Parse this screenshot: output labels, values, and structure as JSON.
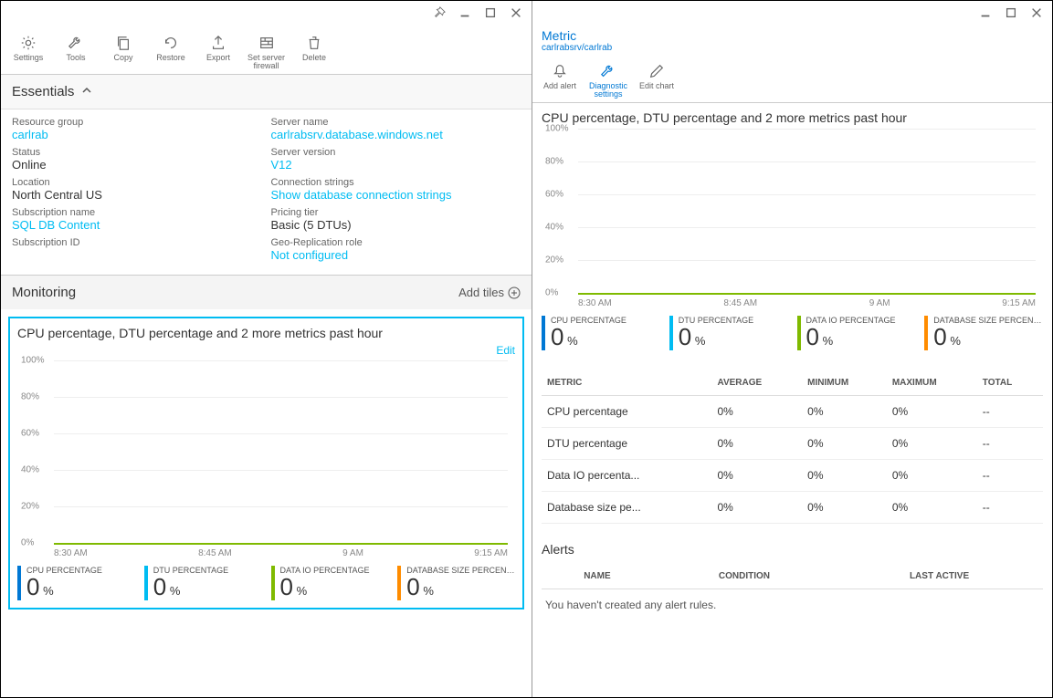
{
  "leftPanel": {
    "toolbar": [
      {
        "label": "Settings",
        "icon": "gear"
      },
      {
        "label": "Tools",
        "icon": "wrench"
      },
      {
        "label": "Copy",
        "icon": "copy"
      },
      {
        "label": "Restore",
        "icon": "restore"
      },
      {
        "label": "Export",
        "icon": "export"
      },
      {
        "label": "Set server firewall",
        "icon": "firewall"
      },
      {
        "label": "Delete",
        "icon": "trash"
      }
    ],
    "essentials": {
      "title": "Essentials",
      "left": [
        {
          "label": "Resource group",
          "value": "carlrab",
          "link": true
        },
        {
          "label": "Status",
          "value": "Online"
        },
        {
          "label": "Location",
          "value": "North Central US"
        },
        {
          "label": "Subscription name",
          "value": "SQL DB Content",
          "link": true
        },
        {
          "label": "Subscription ID",
          "value": ""
        }
      ],
      "right": [
        {
          "label": "Server name",
          "value": "carlrabsrv.database.windows.net",
          "link": true
        },
        {
          "label": "Server version",
          "value": "V12",
          "link": true
        },
        {
          "label": "Connection strings",
          "value": "Show database connection strings",
          "link": true
        },
        {
          "label": "Pricing tier",
          "value": "Basic (5 DTUs)"
        },
        {
          "label": "Geo-Replication role",
          "value": "Not configured",
          "link": true
        }
      ]
    },
    "monitoring": {
      "title": "Monitoring",
      "addTiles": "Add tiles",
      "editLabel": "Edit"
    }
  },
  "rightPanel": {
    "header": {
      "title": "Metric",
      "subtitle": "carlrabsrv/carlrab"
    },
    "toolbar": [
      {
        "label": "Add alert",
        "icon": "bell",
        "active": false
      },
      {
        "label": "Diagnostic settings",
        "icon": "wrench",
        "active": true
      },
      {
        "label": "Edit chart",
        "icon": "pencil",
        "active": false
      }
    ],
    "alerts": {
      "title": "Alerts",
      "columns": [
        "NAME",
        "CONDITION",
        "LAST ACTIVE"
      ],
      "empty": "You haven't created any alert rules."
    },
    "metricsTable": {
      "columns": [
        "METRIC",
        "AVERAGE",
        "MINIMUM",
        "MAXIMUM",
        "TOTAL"
      ],
      "rows": [
        [
          "CPU percentage",
          "0%",
          "0%",
          "0%",
          "--"
        ],
        [
          "DTU percentage",
          "0%",
          "0%",
          "0%",
          "--"
        ],
        [
          "Data IO percenta...",
          "0%",
          "0%",
          "0%",
          "--"
        ],
        [
          "Database size pe...",
          "0%",
          "0%",
          "0%",
          "--"
        ]
      ]
    }
  },
  "chart": {
    "title": "CPU percentage, DTU percentage and 2 more metrics past hour",
    "yTicks": [
      "100%",
      "80%",
      "60%",
      "40%",
      "20%",
      "0%"
    ],
    "xTicks": [
      "8:30 AM",
      "8:45 AM",
      "9 AM",
      "9:15 AM"
    ],
    "legend": [
      {
        "name": "CPU PERCENTAGE",
        "value": "0",
        "unit": "%",
        "color": "#0078d4"
      },
      {
        "name": "DTU PERCENTAGE",
        "value": "0",
        "unit": "%",
        "color": "#00bcf2"
      },
      {
        "name": "DATA IO PERCENTAGE",
        "value": "0",
        "unit": "%",
        "color": "#7fba00"
      },
      {
        "name": "DATABASE SIZE PERCENT...",
        "value": "0",
        "unit": "%",
        "color": "#ff8c00"
      }
    ],
    "gridColor": "#eeeeee",
    "baselineColor": "#7fba00"
  }
}
